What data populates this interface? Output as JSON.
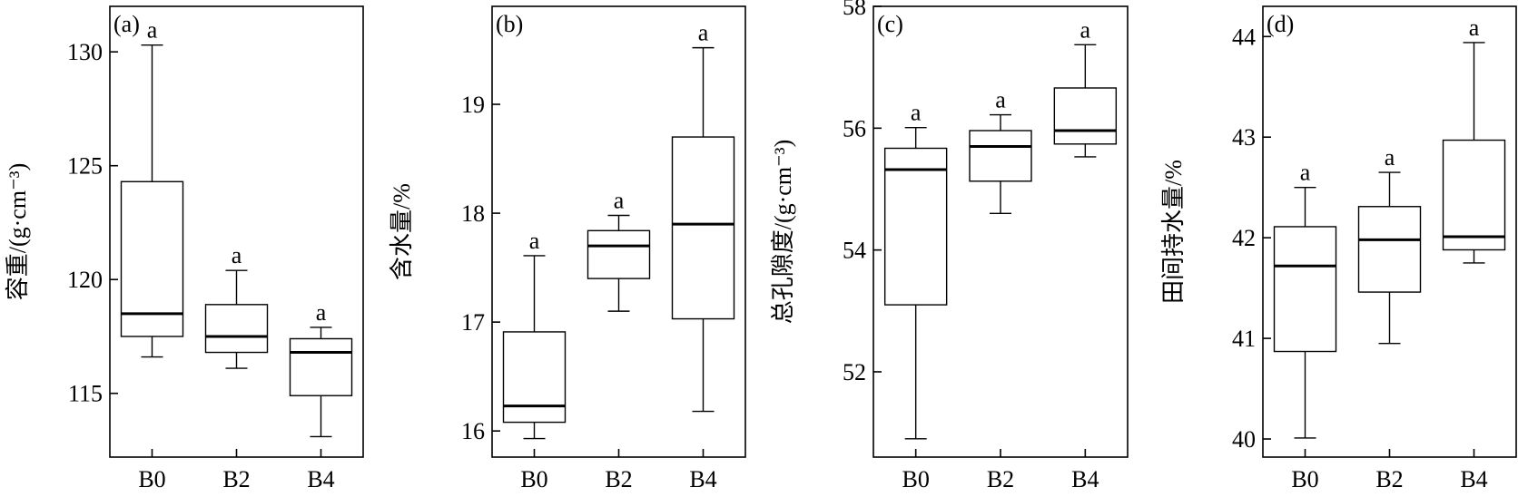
{
  "chart_data": [
    {
      "type": "box",
      "panel_label": "(a)",
      "ylabel": "容重/(g·cm⁻³)",
      "categories": [
        "B0",
        "B2",
        "B4"
      ],
      "ylim": [
        112.2,
        132.0
      ],
      "yticks": [
        115,
        120,
        125,
        130
      ],
      "boxes": [
        {
          "category": "B0",
          "whisker_low": 116.6,
          "q1": 117.5,
          "median": 118.5,
          "q3": 124.3,
          "whisker_high": 130.3,
          "sig": "a"
        },
        {
          "category": "B2",
          "whisker_low": 116.1,
          "q1": 116.8,
          "median": 117.5,
          "q3": 118.9,
          "whisker_high": 120.4,
          "sig": "a"
        },
        {
          "category": "B4",
          "whisker_low": 113.1,
          "q1": 114.9,
          "median": 116.8,
          "q3": 117.4,
          "whisker_high": 117.9,
          "sig": "a"
        }
      ]
    },
    {
      "type": "box",
      "panel_label": "(b)",
      "ylabel": "含水量/%",
      "categories": [
        "B0",
        "B2",
        "B4"
      ],
      "ylim": [
        15.76,
        19.9
      ],
      "yticks": [
        16,
        17,
        18,
        19
      ],
      "boxes": [
        {
          "category": "B0",
          "whisker_low": 15.93,
          "q1": 16.08,
          "median": 16.23,
          "q3": 16.91,
          "whisker_high": 17.61,
          "sig": "a"
        },
        {
          "category": "B2",
          "whisker_low": 17.1,
          "q1": 17.4,
          "median": 17.7,
          "q3": 17.84,
          "whisker_high": 17.98,
          "sig": "a"
        },
        {
          "category": "B4",
          "whisker_low": 16.18,
          "q1": 17.03,
          "median": 17.9,
          "q3": 18.7,
          "whisker_high": 19.52,
          "sig": "a"
        }
      ]
    },
    {
      "type": "box",
      "panel_label": "(c)",
      "ylabel": "总孔隙度/(g·cm⁻³)",
      "categories": [
        "B0",
        "B2",
        "B4"
      ],
      "ylim": [
        50.6,
        58.0
      ],
      "yticks": [
        52,
        54,
        56,
        58
      ],
      "boxes": [
        {
          "category": "B0",
          "whisker_low": 50.9,
          "q1": 53.1,
          "median": 55.32,
          "q3": 55.67,
          "whisker_high": 56.01,
          "sig": "a"
        },
        {
          "category": "B2",
          "whisker_low": 54.6,
          "q1": 55.13,
          "median": 55.7,
          "q3": 55.96,
          "whisker_high": 56.22,
          "sig": "a"
        },
        {
          "category": "B4",
          "whisker_low": 55.53,
          "q1": 55.74,
          "median": 55.96,
          "q3": 56.66,
          "whisker_high": 57.37,
          "sig": "a"
        }
      ]
    },
    {
      "type": "box",
      "panel_label": "(d)",
      "ylabel": "田间持水量/%",
      "categories": [
        "B0",
        "B2",
        "B4"
      ],
      "ylim": [
        39.82,
        44.3
      ],
      "yticks": [
        40,
        41,
        42,
        43,
        44
      ],
      "boxes": [
        {
          "category": "B0",
          "whisker_low": 40.01,
          "q1": 40.87,
          "median": 41.72,
          "q3": 42.11,
          "whisker_high": 42.5,
          "sig": "a"
        },
        {
          "category": "B2",
          "whisker_low": 40.95,
          "q1": 41.46,
          "median": 41.98,
          "q3": 42.31,
          "whisker_high": 42.65,
          "sig": "a"
        },
        {
          "category": "B4",
          "whisker_low": 41.75,
          "q1": 41.88,
          "median": 42.01,
          "q3": 42.97,
          "whisker_high": 43.94,
          "sig": "a"
        }
      ]
    }
  ]
}
